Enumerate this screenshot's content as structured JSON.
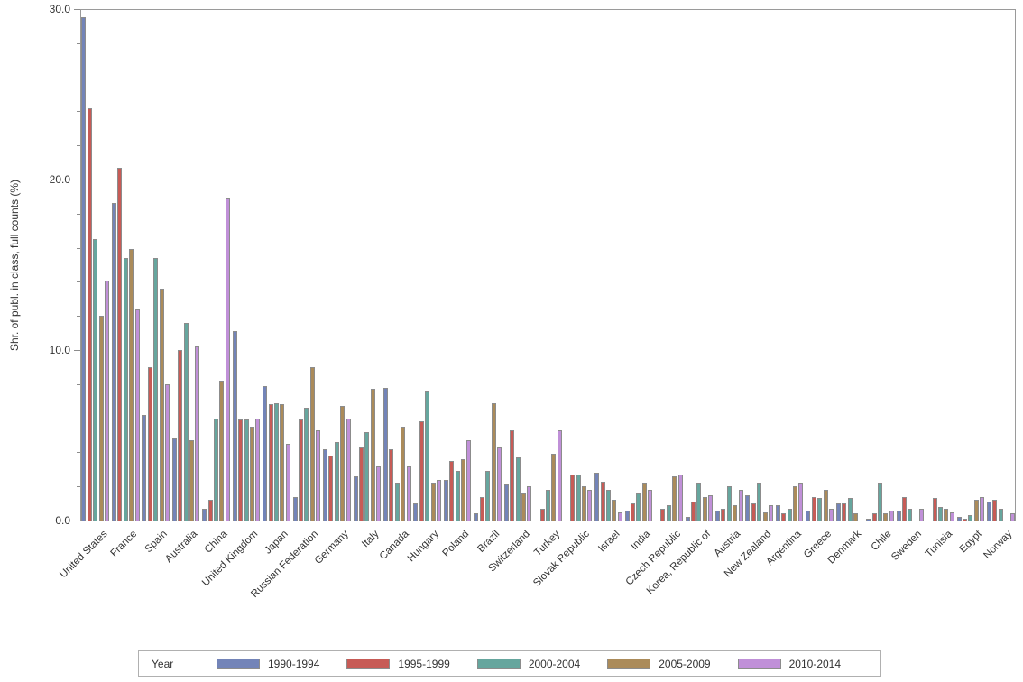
{
  "chart": {
    "y_axis_title": "Shr. of publ. in class, full counts (%)",
    "legend_title": "Year"
  },
  "chart_data": {
    "type": "bar",
    "title": "",
    "xlabel": "",
    "ylabel": "Shr. of publ. in class, full counts (%)",
    "ylim": [
      0,
      30
    ],
    "y_major_tick_interval": 10,
    "y_minor_tick_interval": 2,
    "y_tick_labels": [
      "0.0",
      "10.0",
      "20.0",
      "30.0"
    ],
    "grid": false,
    "legend_position": "bottom",
    "legend_title": "Year",
    "bar_outline_color": "#8c8c8c",
    "categories": [
      "United States",
      "France",
      "Spain",
      "Australia",
      "China",
      "United Kingdom",
      "Japan",
      "Russian Federation",
      "Germany",
      "Italy",
      "Canada",
      "Hungary",
      "Poland",
      "Brazil",
      "Switzerland",
      "Turkey",
      "Slovak Republic",
      "Israel",
      "India",
      "Czech Republic",
      "Korea, Republic of",
      "Austria",
      "New Zealand",
      "Argentina",
      "Greece",
      "Denmark",
      "Chile",
      "Sweden",
      "Tunisia",
      "Egypt",
      "Norway"
    ],
    "series": [
      {
        "name": "1990-1994",
        "color": "#7384b8",
        "values": [
          29.5,
          18.6,
          6.2,
          4.8,
          0.7,
          11.1,
          7.9,
          1.4,
          4.2,
          2.6,
          7.8,
          1.0,
          2.4,
          0.4,
          2.1,
          0,
          0,
          2.8,
          0.6,
          0,
          0.2,
          0.6,
          1.5,
          0.9,
          0.6,
          1.0,
          0.1,
          0.6,
          0,
          0.2,
          1.1
        ]
      },
      {
        "name": "1995-1999",
        "color": "#c75b56",
        "values": [
          24.2,
          20.7,
          9.0,
          10.0,
          1.2,
          5.9,
          6.8,
          5.9,
          3.8,
          4.3,
          4.2,
          5.8,
          3.5,
          1.4,
          5.3,
          0.7,
          2.7,
          2.3,
          1.0,
          0.7,
          1.1,
          0.7,
          1.0,
          0.4,
          1.4,
          1.0,
          0.4,
          1.4,
          1.3,
          0.1,
          1.2
        ]
      },
      {
        "name": "2000-2004",
        "color": "#66a69e",
        "values": [
          16.5,
          15.4,
          15.4,
          11.6,
          6.0,
          5.9,
          6.9,
          6.6,
          4.6,
          5.2,
          2.2,
          7.6,
          2.9,
          2.9,
          3.7,
          1.8,
          2.7,
          1.8,
          1.6,
          0.9,
          2.2,
          2.0,
          2.2,
          0.7,
          1.3,
          1.3,
          2.2,
          0.7,
          0.8,
          0.3,
          0.7
        ]
      },
      {
        "name": "2005-2009",
        "color": "#ab8b5a",
        "values": [
          12.0,
          15.9,
          13.6,
          4.7,
          8.2,
          5.5,
          6.8,
          9.0,
          6.7,
          7.7,
          5.5,
          2.2,
          3.6,
          6.9,
          1.6,
          3.9,
          2.0,
          1.2,
          2.2,
          2.6,
          1.4,
          0.9,
          0.5,
          2.0,
          1.8,
          0.4,
          0.4,
          0,
          0.7,
          1.2,
          0
        ]
      },
      {
        "name": "2010-2014",
        "color": "#c090d8",
        "values": [
          14.1,
          12.4,
          8.0,
          10.2,
          18.9,
          6.0,
          4.5,
          5.3,
          6.0,
          3.2,
          3.2,
          2.4,
          4.7,
          4.3,
          2.0,
          5.3,
          1.8,
          0.5,
          1.8,
          2.7,
          1.5,
          1.8,
          0.9,
          2.2,
          0.7,
          0,
          0.6,
          0.7,
          0.5,
          1.4,
          0.4
        ]
      }
    ]
  }
}
